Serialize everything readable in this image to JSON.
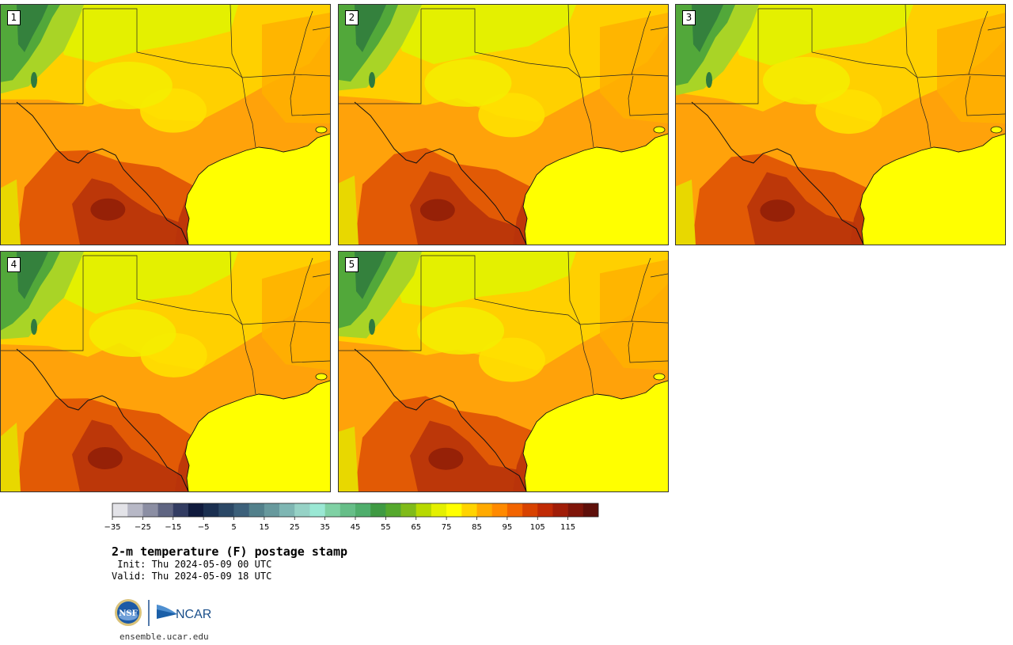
{
  "title": "2-m temperature (F) postage stamp",
  "init_line": " Init: Thu 2024-05-09 00 UTC",
  "valid_line": "Valid: Thu 2024-05-09 18 UTC",
  "site": "ensemble.ucar.edu",
  "logo_text": "NCAR",
  "panels": [
    {
      "label": "1",
      "variant": 0
    },
    {
      "label": "2",
      "variant": 1
    },
    {
      "label": "3",
      "variant": 2
    },
    {
      "label": "4",
      "variant": 3
    },
    {
      "label": "5",
      "variant": 4
    }
  ],
  "colorbar": {
    "ticks": [
      "−35",
      "−25",
      "−15",
      "−5",
      "5",
      "15",
      "25",
      "35",
      "45",
      "55",
      "65",
      "75",
      "85",
      "95",
      "105",
      "115"
    ],
    "colors": [
      "#e3e3e8",
      "#b7b8c6",
      "#8b8ea3",
      "#5f6582",
      "#323c62",
      "#0f1a3d",
      "#1a2f50",
      "#2b4866",
      "#3c607a",
      "#52808b",
      "#67999d",
      "#7eb6b3",
      "#96d2c6",
      "#9ae8d4",
      "#7fd1a4",
      "#66be88",
      "#4fae6c",
      "#3f9a43",
      "#55a82d",
      "#80bb1a",
      "#b7d900",
      "#e4f000",
      "#ffff00",
      "#ffd400",
      "#ffaa00",
      "#ff8a00",
      "#f26400",
      "#d84200",
      "#c02a05",
      "#a01d08",
      "#7f150a",
      "#5e0f0a"
    ]
  },
  "colors": {
    "sea": "#ffff00",
    "land_base": "#ffa20a",
    "hot": "#e25a05",
    "very_hot": "#b8330a",
    "warm_yellow": "#ffd000",
    "cool_green": "#a9d426",
    "green": "#52a83a",
    "dark_green": "#2f7a3e"
  }
}
